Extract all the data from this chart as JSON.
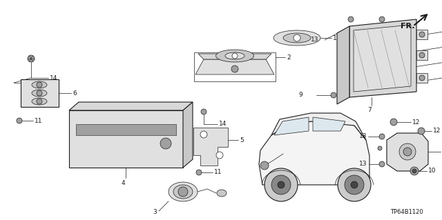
{
  "background_color": "#ffffff",
  "diagram_code": "TP64B1120",
  "line_color": "#1a1a1a",
  "label_fontsize": 6.5,
  "code_fontsize": 6,
  "fr_fontsize": 8,
  "lw_thin": 0.5,
  "lw_med": 0.8,
  "lw_thick": 1.2
}
